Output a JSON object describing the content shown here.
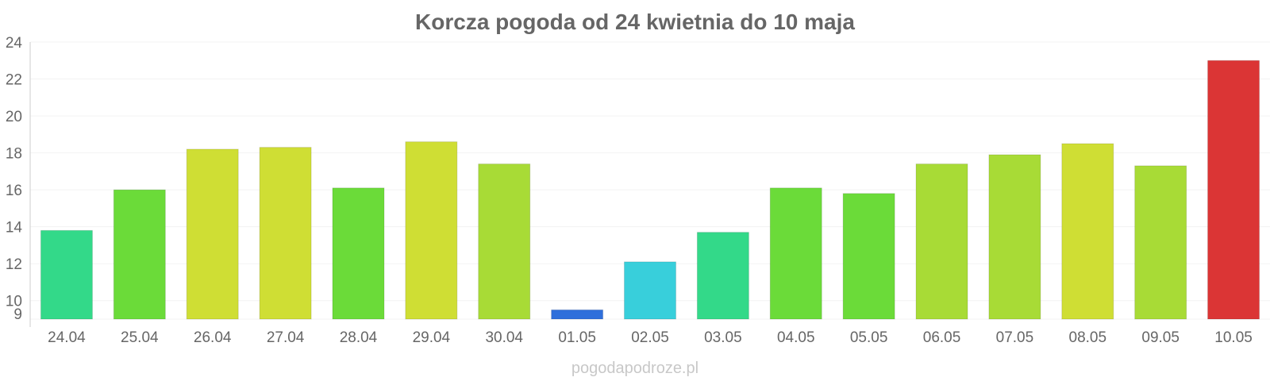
{
  "chart_data": {
    "type": "bar",
    "title": "Korcza pogoda od 24 kwietnia do 10 maja",
    "xlabel": "",
    "ylabel": "",
    "ylim": [
      9,
      24
    ],
    "yticks": [
      9,
      10,
      12,
      14,
      16,
      18,
      20,
      22,
      24
    ],
    "grid": true,
    "categories": [
      "24.04",
      "25.04",
      "26.04",
      "27.04",
      "28.04",
      "29.04",
      "30.04",
      "01.05",
      "02.05",
      "03.05",
      "04.05",
      "05.05",
      "06.05",
      "07.05",
      "08.05",
      "09.05",
      "10.05"
    ],
    "values": [
      13.8,
      16.0,
      18.2,
      18.3,
      16.1,
      18.6,
      17.4,
      9.5,
      12.1,
      13.7,
      16.1,
      15.8,
      17.4,
      17.9,
      18.5,
      17.3,
      23.0
    ],
    "colors": [
      "#33d989",
      "#6bdb39",
      "#cfde34",
      "#cfde34",
      "#6bdb39",
      "#cfde34",
      "#a8db36",
      "#2f6fdb",
      "#38cfdb",
      "#33d989",
      "#6bdb39",
      "#6bdb39",
      "#a8db36",
      "#a8db36",
      "#cfde34",
      "#a8db36",
      "#db3535"
    ]
  },
  "credit": "pogodapodroze.pl"
}
